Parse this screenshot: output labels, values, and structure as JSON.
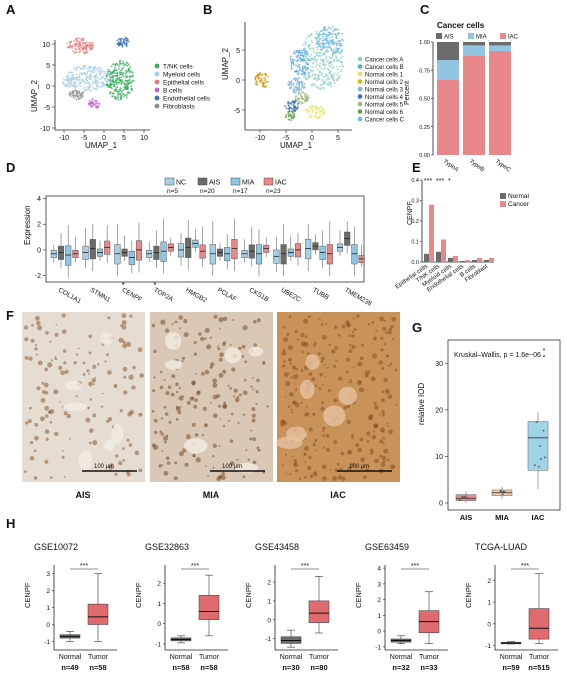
{
  "panels": {
    "A": {
      "label": "A",
      "xlabel": "UMAP_1",
      "ylabel": "UMAP_2",
      "xticks": [
        "-10",
        "-5",
        "0",
        "5",
        "10"
      ],
      "yticks": [
        "10",
        "5",
        "0",
        "-5",
        "-10"
      ],
      "legend": [
        {
          "name": "T/NK cells",
          "color": "#3aaf5e"
        },
        {
          "name": "Myeloid cells",
          "color": "#a6cee3"
        },
        {
          "name": "Epithelial cells",
          "color": "#e8787a"
        },
        {
          "name": "B cells",
          "color": "#c264c6"
        },
        {
          "name": "Endothelial cells",
          "color": "#3d6fb6"
        },
        {
          "name": "Fibroblasts",
          "color": "#8c8c8c"
        }
      ]
    },
    "B": {
      "label": "B",
      "xlabel": "UMAP_1",
      "ylabel": "UMAP_2",
      "xticks": [
        "-10",
        "-5",
        "0",
        "5"
      ],
      "yticks": [
        "5",
        "0",
        "-5"
      ],
      "legend": [
        {
          "name": "Cancer cells A",
          "color": "#8ed0c8"
        },
        {
          "name": "Cancer cells B",
          "color": "#5aa9e6"
        },
        {
          "name": "Normal cells 1",
          "color": "#e3e36a"
        },
        {
          "name": "Normal cells 2",
          "color": "#d9b300"
        },
        {
          "name": "Normal cells 3",
          "color": "#7fb0d9"
        },
        {
          "name": "Normal cells 4",
          "color": "#3d6fb6"
        },
        {
          "name": "Normal cells 5",
          "color": "#9ab87a"
        },
        {
          "name": "Normal cells 6",
          "color": "#5f9f4e"
        },
        {
          "name": "Cancer cells C",
          "color": "#6fb7e8"
        }
      ]
    },
    "C": {
      "label": "C",
      "title": "Cancer cells",
      "ylabel": "Percent",
      "yticks": [
        "1.00",
        "0.75",
        "0.50",
        "0.25",
        "0.00"
      ],
      "legend": [
        {
          "name": "AIS",
          "color": "#6b6b6b"
        },
        {
          "name": "MIA",
          "color": "#91c5e3"
        },
        {
          "name": "IAC",
          "color": "#e8888a"
        }
      ]
    },
    "D": {
      "label": "D",
      "ylabel": "Expression",
      "yticks": [
        "4",
        "2",
        "0",
        "-2"
      ],
      "legend": [
        {
          "name": "NC",
          "n": "n=5",
          "color": "#a9cfe8"
        },
        {
          "name": "AIS",
          "n": "n=20",
          "color": "#6b6b6b"
        },
        {
          "name": "MIA",
          "n": "n=17",
          "color": "#8ec6e6"
        },
        {
          "name": "IAC",
          "n": "n=23",
          "color": "#e8888a"
        }
      ],
      "genes": [
        "COL1A1",
        "STMN1",
        "CENPF",
        "TOP2A",
        "HMGB2",
        "PCLAF",
        "CKS1B",
        "UBE2C",
        "TUBB",
        "TMEM238"
      ],
      "stars": [
        "*",
        "*"
      ]
    },
    "E": {
      "label": "E",
      "ylabel": "CENPF",
      "yticks": [
        "0.4",
        "0.3",
        "0.2",
        "0.1",
        "0.0"
      ],
      "legend": [
        {
          "name": "Normal",
          "color": "#6b6b6b"
        },
        {
          "name": "Cancer",
          "color": "#e8888a"
        }
      ],
      "stars": [
        "***",
        "***",
        "*"
      ]
    },
    "F": {
      "label": "F",
      "scalebar": "100 μm",
      "groups": [
        "AIS",
        "MIA",
        "IAC"
      ]
    },
    "G": {
      "label": "G",
      "annotation": "Kruskal–Wallis, p = 1.6e−06",
      "ylabel": "relative IOD",
      "yticks": [
        "30",
        "20",
        "10",
        "0"
      ],
      "groups": [
        "AIS",
        "MIA",
        "IAC"
      ]
    },
    "H": {
      "label": "H",
      "ylabel": "CENPF",
      "sig": "***",
      "groups": [
        "Normal",
        "Tumor"
      ]
    }
  },
  "chart_data": [
    {
      "type": "bar",
      "panel": "C",
      "title": "Cancer cells",
      "ylabel": "Percent",
      "ylim": [
        0,
        1
      ],
      "categories": [
        "TypeA",
        "TypeB",
        "TypeC"
      ],
      "series": [
        {
          "name": "IAC",
          "values": [
            0.67,
            0.88,
            0.92
          ]
        },
        {
          "name": "MIA",
          "values": [
            0.17,
            0.09,
            0.05
          ]
        },
        {
          "name": "AIS",
          "values": [
            0.16,
            0.03,
            0.03
          ]
        }
      ]
    },
    {
      "type": "bar",
      "panel": "E",
      "ylabel": "CENPF",
      "ylim": [
        0,
        0.4
      ],
      "categories": [
        "Epithelial cells",
        "T/NK cells",
        "Myeloid cells",
        "Endothelial cells",
        "B cells",
        "Fibroblast"
      ],
      "series": [
        {
          "name": "Normal",
          "values": [
            0.04,
            0.05,
            0.02,
            0.005,
            0.01,
            0.01
          ]
        },
        {
          "name": "Cancer",
          "values": [
            0.28,
            0.11,
            0.03,
            0.01,
            0.02,
            0.02
          ]
        }
      ]
    },
    {
      "type": "box",
      "panel": "D",
      "ylabel": "Expression",
      "ylim": [
        -2.5,
        4
      ],
      "categories": [
        "COL1A1",
        "STMN1",
        "CENPF",
        "TOP2A",
        "HMGB2",
        "PCLAF",
        "CKS1B",
        "UBE2C",
        "TUBB",
        "TMEM238"
      ],
      "series_names": [
        "NC",
        "AIS",
        "MIA",
        "IAC"
      ],
      "medians": [
        [
          -0.3,
          -0.2,
          -0.4,
          -0.3
        ],
        [
          -0.2,
          0.1,
          -0.2,
          0.2
        ],
        [
          -0.3,
          -0.2,
          -0.6,
          0.0
        ],
        [
          -0.3,
          -0.2,
          -0.1,
          0.2
        ],
        [
          0.0,
          0.2,
          0.5,
          -0.1
        ],
        [
          -0.3,
          -0.2,
          -0.3,
          0.1
        ],
        [
          -0.3,
          -0.1,
          -0.3,
          0.1
        ],
        [
          -0.5,
          -0.3,
          -0.2,
          0.0
        ],
        [
          0.1,
          0.3,
          -0.2,
          -0.3
        ],
        [
          0.2,
          0.9,
          -0.3,
          -0.7
        ]
      ]
    },
    {
      "type": "box",
      "panel": "G",
      "ylabel": "relative IOD",
      "ylim": [
        0,
        35
      ],
      "categories": [
        "AIS",
        "MIA",
        "IAC"
      ],
      "boxes": [
        {
          "q1": 0.5,
          "median": 1.0,
          "q3": 1.8,
          "min": 0.0,
          "max": 2.5
        },
        {
          "q1": 1.6,
          "median": 2.2,
          "q3": 2.8,
          "min": 0.8,
          "max": 3.5
        },
        {
          "q1": 7.0,
          "median": 14.0,
          "q3": 17.5,
          "min": 3.0,
          "max": 19.5
        }
      ],
      "outliers": [
        33.0,
        31.5
      ]
    },
    {
      "type": "box",
      "panel": "H",
      "datasets": [
        {
          "title": "GSE10072",
          "yticks": [
            "3",
            "2",
            "1",
            "0",
            "-1"
          ],
          "ylim": [
            -1.5,
            3.5
          ],
          "normal": {
            "n": "n=49",
            "q1": -0.8,
            "median": -0.7,
            "q3": -0.6,
            "min": -1.0,
            "max": -0.4
          },
          "tumor": {
            "n": "n=58",
            "q1": 0.0,
            "median": 0.45,
            "q3": 1.2,
            "min": -1.0,
            "max": 3.0
          }
        },
        {
          "title": "GSE32863",
          "yticks": [
            "2",
            "1",
            "0",
            "-1"
          ],
          "ylim": [
            -1.3,
            2.9
          ],
          "normal": {
            "n": "n=58",
            "q1": -0.85,
            "median": -0.78,
            "q3": -0.7,
            "min": -0.95,
            "max": -0.6
          },
          "tumor": {
            "n": "n=58",
            "q1": 0.2,
            "median": 0.6,
            "q3": 1.4,
            "min": -0.6,
            "max": 2.4
          }
        },
        {
          "title": "GSE43458",
          "yticks": [
            "2",
            "1",
            "0",
            "-1"
          ],
          "ylim": [
            -1.6,
            2.9
          ],
          "normal": {
            "n": "n=30",
            "q1": -1.25,
            "median": -1.1,
            "q3": -0.9,
            "min": -1.45,
            "max": -0.55
          },
          "tumor": {
            "n": "n=80",
            "q1": -0.15,
            "median": 0.35,
            "q3": 1.0,
            "min": -0.7,
            "max": 2.3
          }
        },
        {
          "title": "GSE63459",
          "yticks": [
            "4",
            "3",
            "2",
            "1",
            "0",
            "-1"
          ],
          "ylim": [
            -1.2,
            4.2
          ],
          "normal": {
            "n": "n=32",
            "q1": -0.7,
            "median": -0.6,
            "q3": -0.5,
            "min": -0.8,
            "max": -0.3
          },
          "tumor": {
            "n": "n=33",
            "q1": -0.1,
            "median": 0.6,
            "q3": 1.3,
            "min": -0.8,
            "max": 2.5
          }
        },
        {
          "title": "TCGA-LUAD",
          "yticks": [
            "2",
            "1",
            "0",
            "-1"
          ],
          "ylim": [
            -1.2,
            2.7
          ],
          "normal": {
            "n": "n=59",
            "q1": -0.9,
            "median": -0.88,
            "q3": -0.85,
            "min": -0.92,
            "max": -0.82
          },
          "tumor": {
            "n": "n=515",
            "q1": -0.7,
            "median": -0.2,
            "q3": 0.7,
            "min": -0.9,
            "max": 2.3
          }
        }
      ]
    }
  ]
}
